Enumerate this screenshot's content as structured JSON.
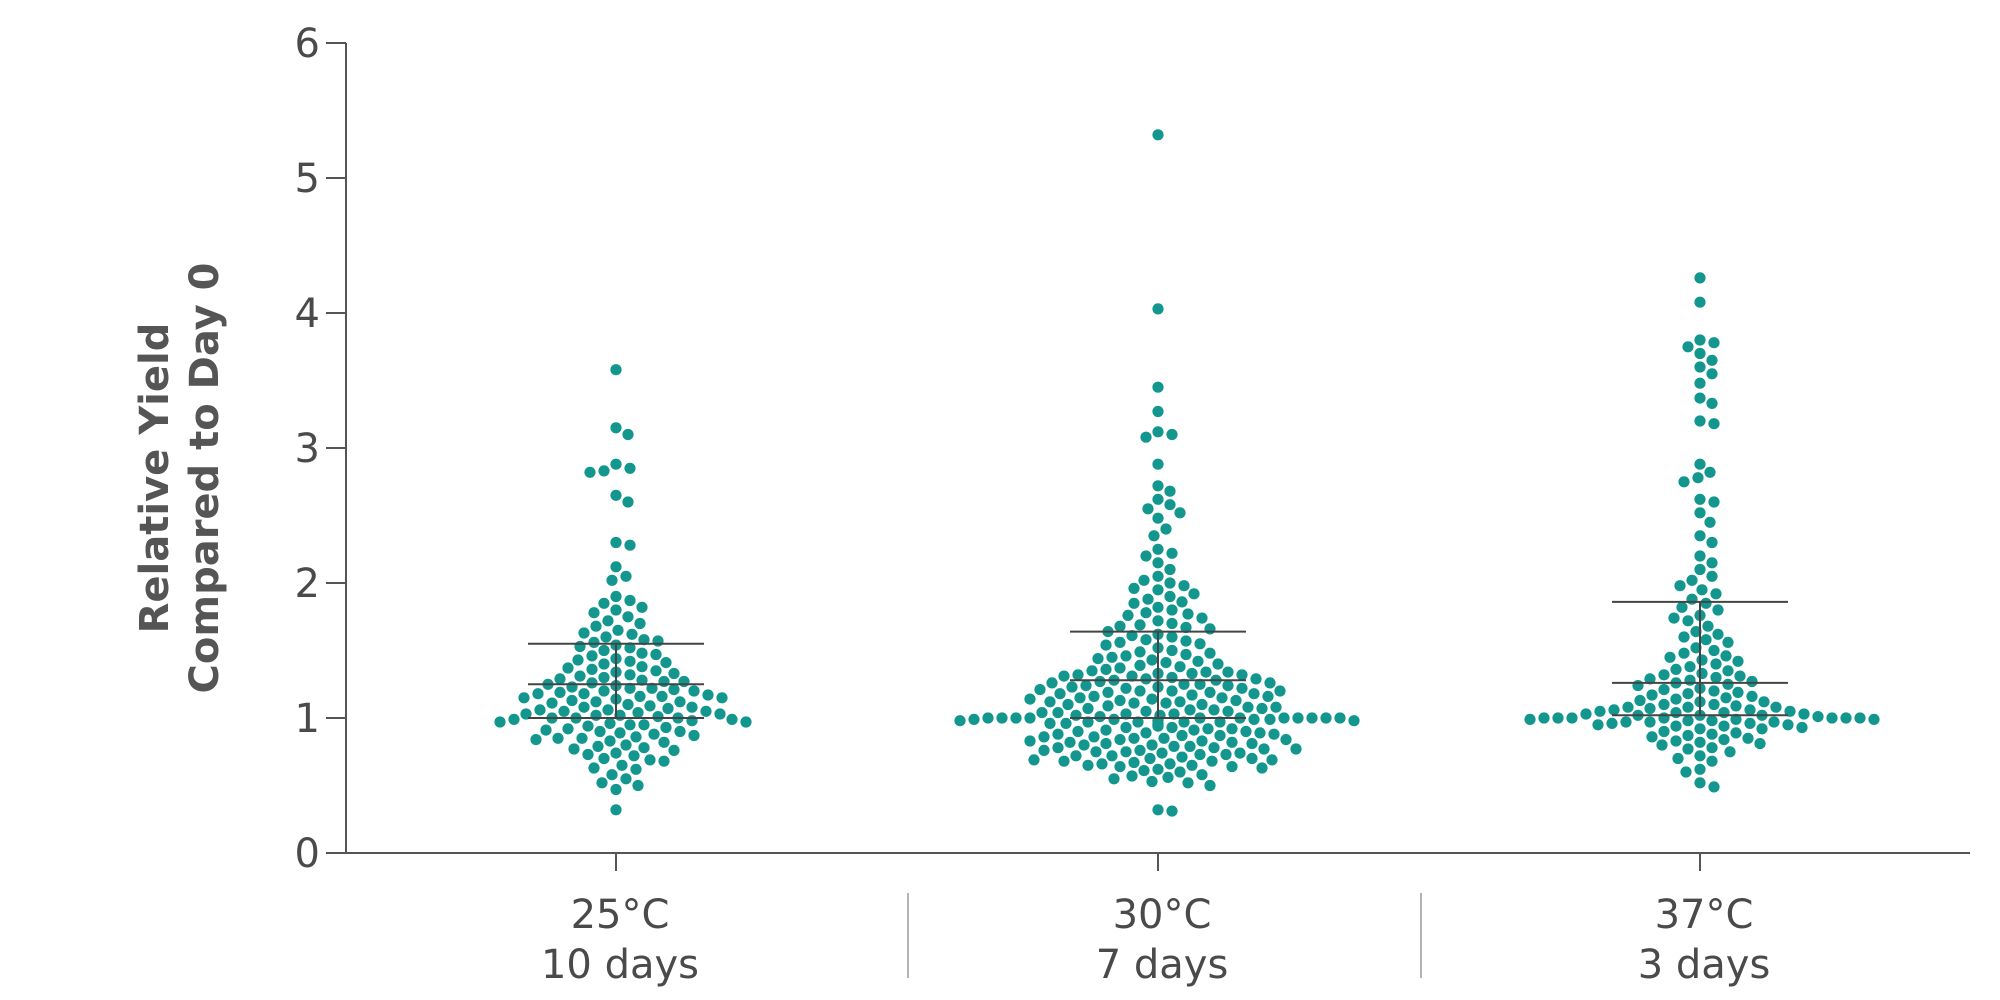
{
  "chart_data": {
    "type": "scatter",
    "style": "beeswarm-dot-plot",
    "ylabel": [
      "Relative Yield",
      "Compared to Day 0"
    ],
    "ylim": [
      0,
      6
    ],
    "yticks": [
      0,
      1,
      2,
      3,
      4,
      5,
      6
    ],
    "grid": false,
    "legend": "none",
    "color": "#12968e",
    "categories": [
      {
        "label": [
          "25°C",
          "10 days"
        ],
        "median": 1.25,
        "q1": 1.0,
        "q3": 1.55,
        "values": [
          3.58,
          3.15,
          3.1,
          2.88,
          2.85,
          2.83,
          2.82,
          2.65,
          2.6,
          2.3,
          2.28,
          2.12,
          2.05,
          2.02,
          1.9,
          1.87,
          1.85,
          1.82,
          1.8,
          1.78,
          1.75,
          1.72,
          1.7,
          1.68,
          1.65,
          1.63,
          1.6,
          1.58,
          1.56,
          1.54,
          1.52,
          1.5,
          1.48,
          1.46,
          1.44,
          1.42,
          1.4,
          1.38,
          1.36,
          1.35,
          1.33,
          1.31,
          1.3,
          1.28,
          1.27,
          1.25,
          1.24,
          1.22,
          1.21,
          1.2,
          1.19,
          1.18,
          1.17,
          1.16,
          1.15,
          1.14,
          1.13,
          1.12,
          1.1,
          1.09,
          1.08,
          1.07,
          1.06,
          1.05,
          1.04,
          1.03,
          1.02,
          1.01,
          1.0,
          1.0,
          0.99,
          0.98,
          0.97,
          0.96,
          0.95,
          0.93,
          0.92,
          0.9,
          0.88,
          0.87,
          0.86,
          0.85,
          0.84,
          0.82,
          0.8,
          0.78,
          0.76,
          0.74,
          0.72,
          0.7,
          0.68,
          0.65,
          0.62,
          0.58,
          0.55,
          0.52,
          0.5,
          0.47,
          0.32,
          1.62,
          1.57,
          1.47,
          1.43,
          1.37,
          1.34,
          1.29,
          1.26,
          1.23,
          1.2,
          1.18,
          1.15,
          1.11,
          1.08,
          1.05,
          1.02,
          1.0,
          0.97,
          0.94,
          0.91,
          0.89,
          0.83,
          0.79,
          0.73,
          0.69,
          0.63,
          1.53,
          1.41,
          1.32,
          1.27,
          1.22,
          1.16,
          1.12,
          1.06,
          1.03,
          0.99,
          0.95,
          0.9,
          0.85,
          0.77
        ]
      },
      {
        "label": [
          "30°C",
          "7 days"
        ],
        "median": 1.28,
        "q1": 1.0,
        "q3": 1.64,
        "values": [
          5.32,
          4.03,
          3.45,
          3.27,
          3.12,
          3.1,
          3.08,
          2.88,
          2.72,
          2.68,
          2.62,
          2.58,
          2.55,
          2.52,
          2.48,
          2.4,
          2.35,
          2.25,
          2.22,
          2.2,
          2.15,
          2.1,
          2.05,
          2.02,
          2.0,
          1.98,
          1.95,
          1.92,
          1.9,
          1.88,
          1.85,
          1.82,
          1.8,
          1.78,
          1.76,
          1.74,
          1.72,
          1.7,
          1.68,
          1.66,
          1.64,
          1.62,
          1.6,
          1.58,
          1.56,
          1.54,
          1.52,
          1.5,
          1.48,
          1.46,
          1.44,
          1.42,
          1.4,
          1.38,
          1.36,
          1.35,
          1.34,
          1.33,
          1.32,
          1.31,
          1.3,
          1.29,
          1.28,
          1.27,
          1.26,
          1.25,
          1.24,
          1.23,
          1.22,
          1.21,
          1.2,
          1.19,
          1.18,
          1.17,
          1.16,
          1.15,
          1.14,
          1.13,
          1.12,
          1.11,
          1.1,
          1.09,
          1.08,
          1.07,
          1.06,
          1.05,
          1.04,
          1.03,
          1.02,
          1.01,
          1.0,
          1.0,
          1.0,
          1.0,
          0.99,
          0.99,
          0.98,
          0.98,
          0.97,
          0.97,
          0.96,
          0.95,
          0.94,
          0.93,
          0.92,
          0.91,
          0.9,
          0.89,
          0.88,
          0.87,
          0.86,
          0.85,
          0.84,
          0.83,
          0.82,
          0.81,
          0.8,
          0.79,
          0.78,
          0.77,
          0.76,
          0.75,
          0.74,
          0.73,
          0.72,
          0.71,
          0.7,
          0.69,
          0.68,
          0.67,
          0.66,
          0.65,
          0.64,
          0.63,
          0.62,
          0.6,
          0.58,
          0.56,
          0.55,
          0.53,
          0.52,
          0.5,
          0.32,
          0.31,
          1.96,
          1.86,
          1.77,
          1.69,
          1.61,
          1.55,
          1.49,
          1.45,
          1.41,
          1.37,
          1.34,
          1.31,
          1.29,
          1.26,
          1.24,
          1.22,
          1.2,
          1.18,
          1.16,
          1.14,
          1.12,
          1.1,
          1.08,
          1.06,
          1.04,
          1.02,
          1.0,
          1.0,
          1.0,
          0.99,
          0.98,
          0.97,
          0.96,
          0.94,
          0.92,
          0.9,
          0.88,
          0.86,
          0.84,
          0.82,
          0.8,
          0.78,
          0.76,
          0.74,
          0.72,
          0.7,
          0.68,
          0.66,
          0.64,
          0.61,
          0.57,
          1.67,
          1.57,
          1.47,
          1.39,
          1.33,
          1.28,
          1.23,
          1.19,
          1.15,
          1.11,
          1.07,
          1.03,
          1.0,
          1.0,
          0.99,
          0.97,
          0.95,
          0.93,
          0.89,
          0.85,
          0.81,
          0.77,
          0.73,
          0.69,
          0.65,
          1.43,
          1.32,
          1.25,
          1.2,
          1.13,
          1.05,
          1.0,
          1.0,
          0.98,
          0.96,
          0.91,
          0.87,
          0.83,
          0.79,
          0.75
        ]
      },
      {
        "label": [
          "37°C",
          "3 days"
        ],
        "median": 1.26,
        "q1": 1.02,
        "q3": 1.86,
        "values": [
          4.26,
          4.08,
          3.8,
          3.78,
          3.75,
          3.7,
          3.65,
          3.6,
          3.55,
          3.48,
          3.37,
          3.33,
          3.2,
          3.18,
          2.88,
          2.82,
          2.78,
          2.75,
          2.62,
          2.6,
          2.52,
          2.45,
          2.35,
          2.3,
          2.2,
          2.15,
          2.1,
          2.05,
          2.02,
          1.98,
          1.95,
          1.92,
          1.88,
          1.85,
          1.82,
          1.8,
          1.76,
          1.72,
          1.68,
          1.64,
          1.6,
          1.56,
          1.52,
          1.5,
          1.48,
          1.45,
          1.42,
          1.4,
          1.38,
          1.35,
          1.32,
          1.3,
          1.28,
          1.26,
          1.24,
          1.22,
          1.2,
          1.18,
          1.16,
          1.14,
          1.12,
          1.1,
          1.08,
          1.07,
          1.06,
          1.05,
          1.04,
          1.03,
          1.02,
          1.01,
          1.0,
          1.0,
          1.0,
          0.99,
          0.98,
          0.97,
          0.96,
          0.95,
          0.94,
          0.92,
          0.9,
          0.88,
          0.86,
          0.84,
          0.82,
          0.8,
          0.78,
          0.75,
          0.72,
          0.7,
          0.68,
          0.62,
          0.6,
          0.52,
          0.49,
          1.74,
          1.58,
          1.46,
          1.36,
          1.29,
          1.25,
          1.21,
          1.17,
          1.13,
          1.1,
          1.08,
          1.06,
          1.04,
          1.02,
          1.0,
          1.0,
          0.99,
          0.97,
          0.95,
          0.93,
          0.89,
          0.85,
          0.81,
          0.77,
          1.62,
          1.43,
          1.33,
          1.27,
          1.19,
          1.12,
          1.09,
          1.05,
          1.02,
          1.0,
          0.98,
          0.96,
          0.92,
          0.87,
          0.83,
          1.31,
          1.15,
          1.08,
          1.03,
          1.0,
          0.99,
          0.97,
          0.94
        ]
      }
    ]
  }
}
